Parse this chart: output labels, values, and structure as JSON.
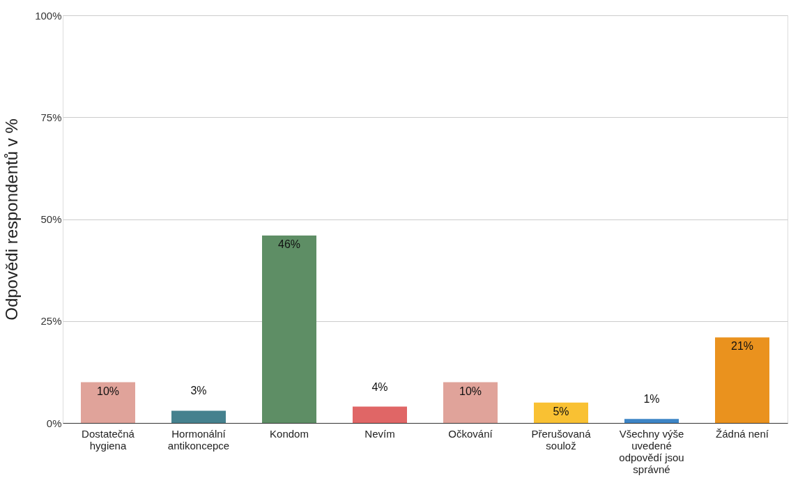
{
  "chart_data": {
    "type": "bar",
    "ylabel": "Odpovědi respondentů v %",
    "categories": [
      "Dostatečná hygiena",
      "Hormonální antikoncepce",
      "Kondom",
      "Nevím",
      "Očkování",
      "Přerušovaná soulož",
      "Všechny výše uvedené odpovědí jsou správné",
      "Žádná není"
    ],
    "values": [
      10,
      3,
      46,
      4,
      10,
      5,
      1,
      21
    ],
    "value_labels": [
      "10%",
      "3%",
      "46%",
      "4%",
      "10%",
      "5%",
      "1%",
      "21%"
    ],
    "colors": [
      "#e0a39a",
      "#45818e",
      "#5e8e65",
      "#e06666",
      "#e0a39a",
      "#f9c133",
      "#3d85c6",
      "#ea921e"
    ],
    "ylim": [
      0,
      100
    ],
    "yticks": [
      {
        "value": 0,
        "label": "0%"
      },
      {
        "value": 25,
        "label": "25%"
      },
      {
        "value": 50,
        "label": "50%"
      },
      {
        "value": 75,
        "label": "75%"
      },
      {
        "value": 100,
        "label": "100%"
      }
    ],
    "grid": "y"
  }
}
